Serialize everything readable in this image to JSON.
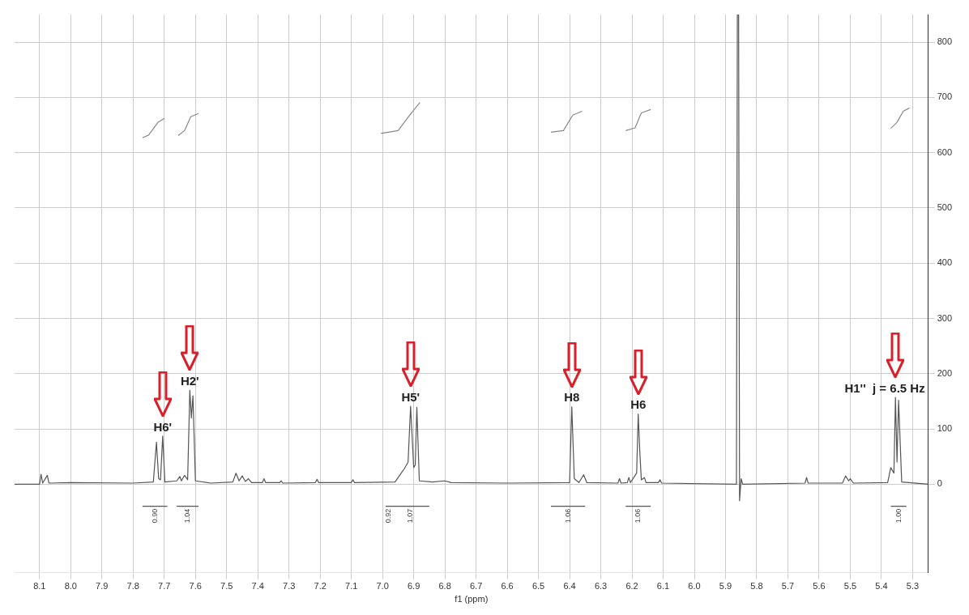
{
  "chart_data": {
    "type": "line",
    "xlabel": "f1 (ppm)",
    "xlim": [
      8.18,
      5.25
    ],
    "xticks": [
      8.1,
      {
        "value": 8,
        "label": "8.0"
      },
      7.9,
      7.8,
      7.7,
      7.6,
      7.5,
      7.4,
      7.3,
      7.2,
      7.1,
      {
        "value": 7,
        "label": "7.0"
      },
      6.9,
      6.8,
      6.7,
      6.6,
      6.5,
      6.4,
      6.3,
      6.2,
      6.1,
      {
        "value": 6,
        "label": "6.0"
      },
      5.9,
      5.8,
      5.7,
      5.6,
      5.5,
      5.4,
      5.3
    ],
    "ylim": [
      -160,
      850
    ],
    "yticks": [
      0,
      100,
      200,
      300,
      400,
      500,
      600,
      700,
      800
    ],
    "grid": true,
    "legend": false,
    "marker": "none",
    "series": [
      {
        "color": "#555555",
        "x": [
          8.18,
          8.1,
          8.095,
          8.09,
          8.075,
          8.07,
          8.0,
          7.8,
          7.735,
          7.725,
          7.718,
          7.712,
          7.705,
          7.698,
          7.66,
          7.65,
          7.645,
          7.635,
          7.625,
          7.618,
          7.613,
          7.608,
          7.6,
          7.55,
          7.48,
          7.47,
          7.46,
          7.45,
          7.44,
          7.43,
          7.42,
          7.385,
          7.38,
          7.375,
          7.33,
          7.325,
          7.32,
          7.215,
          7.21,
          7.205,
          7.1,
          7.095,
          7.09,
          6.96,
          6.94,
          6.93,
          6.918,
          6.91,
          6.9,
          6.895,
          6.89,
          6.882,
          6.84,
          6.8,
          6.78,
          6.6,
          6.4,
          6.393,
          6.385,
          6.37,
          6.355,
          6.345,
          6.245,
          6.24,
          6.235,
          6.215,
          6.21,
          6.205,
          6.185,
          6.18,
          6.175,
          6.17,
          6.16,
          6.155,
          6.115,
          6.11,
          6.105,
          5.865,
          5.862,
          5.858,
          5.855,
          5.85,
          5.845,
          5.645,
          5.64,
          5.635,
          5.525,
          5.515,
          5.505,
          5.5,
          5.49,
          5.38,
          5.37,
          5.36,
          5.355,
          5.35,
          5.345,
          5.335,
          5.25
        ],
        "values": [
          0,
          0,
          18,
          2,
          16,
          2,
          3,
          2,
          4,
          76,
          10,
          8,
          87,
          4,
          6,
          14,
          6,
          16,
          8,
          170,
          120,
          160,
          6,
          2,
          4,
          20,
          6,
          15,
          5,
          10,
          3,
          3,
          10,
          3,
          3,
          6,
          2,
          3,
          9,
          3,
          3,
          8,
          3,
          4,
          20,
          28,
          40,
          141,
          30,
          35,
          139,
          6,
          4,
          6,
          3,
          2,
          3,
          140,
          10,
          3,
          17,
          3,
          2,
          10,
          2,
          3,
          12,
          3,
          20,
          127,
          60,
          8,
          12,
          3,
          3,
          8,
          2,
          0,
          850,
          850,
          -30,
          10,
          0,
          2,
          12,
          2,
          2,
          15,
          6,
          10,
          2,
          3,
          30,
          20,
          157,
          40,
          152,
          4,
          0
        ],
        "value_labels": [
          null,
          null,
          null,
          null,
          null,
          null,
          null,
          null,
          null,
          null,
          null,
          null,
          "H6'",
          null,
          null,
          null,
          null,
          null,
          null,
          "H2'",
          null,
          null,
          null,
          null,
          null,
          null,
          null,
          null,
          null,
          null,
          null,
          null,
          null,
          null,
          null,
          null,
          null,
          null,
          null,
          null,
          null,
          null,
          null,
          null,
          null,
          null,
          null,
          "H5'",
          null,
          null,
          null,
          null,
          null,
          null,
          null,
          null,
          null,
          "H8",
          null,
          null,
          null,
          null,
          null,
          null,
          null,
          null,
          null,
          null,
          null,
          "H6",
          null,
          null,
          null,
          null,
          null,
          null,
          null,
          null,
          null,
          null,
          null,
          null,
          null,
          null,
          null,
          null,
          null,
          null,
          null,
          null,
          null,
          null,
          null,
          null,
          "H1''  j = 6.5 Hz",
          null,
          null,
          null,
          null
        ]
      },
      {
        "color": "#888888",
        "x": [
          7.77,
          7.75,
          7.72,
          7.7
        ],
        "values": [
          627,
          632,
          655,
          662
        ]
      },
      {
        "color": "#888888",
        "x": [
          7.655,
          7.635,
          7.615,
          7.59
        ],
        "values": [
          631,
          640,
          665,
          671
        ]
      },
      {
        "color": "#888888",
        "x": [
          7.005,
          6.95,
          6.91,
          6.88
        ],
        "values": [
          635,
          640,
          670,
          691
        ]
      },
      {
        "color": "#888888",
        "x": [
          6.46,
          6.42,
          6.39,
          6.36
        ],
        "values": [
          637,
          640,
          668,
          675
        ]
      },
      {
        "color": "#888888",
        "x": [
          6.22,
          6.19,
          6.17,
          6.14
        ],
        "values": [
          640,
          645,
          672,
          678
        ]
      },
      {
        "color": "#888888",
        "x": [
          5.37,
          5.35,
          5.33,
          5.31
        ],
        "values": [
          644,
          655,
          675,
          681
        ]
      },
      {
        "color": "#555555",
        "x": [
          7.77,
          7.69
        ],
        "values": [
          -40,
          -40
        ]
      },
      {
        "color": "#555555",
        "x": [
          7.66,
          7.59
        ],
        "values": [
          -40,
          -40
        ]
      },
      {
        "color": "#555555",
        "x": [
          6.99,
          6.85
        ],
        "values": [
          -40,
          -40
        ]
      },
      {
        "color": "#555555",
        "x": [
          6.46,
          6.35
        ],
        "values": [
          -40,
          -40
        ]
      },
      {
        "color": "#555555",
        "x": [
          6.22,
          6.14
        ],
        "values": [
          -40,
          -40
        ]
      },
      {
        "color": "#555555",
        "x": [
          5.37,
          5.32
        ],
        "values": [
          -40,
          -40
        ]
      }
    ],
    "annotations": [
      {
        "text": "0.90",
        "x": 7.73,
        "y": -40
      },
      {
        "text": "1.04",
        "x": 7.625,
        "y": -40
      },
      {
        "text": "0.92",
        "x": 6.98,
        "y": -40
      },
      {
        "text": "1.07",
        "x": 6.91,
        "y": -40
      },
      {
        "text": "1.06",
        "x": 6.405,
        "y": -40
      },
      {
        "text": "1.06",
        "x": 6.18,
        "y": -40
      },
      {
        "text": "1.00",
        "x": 5.345,
        "y": -40
      }
    ]
  }
}
